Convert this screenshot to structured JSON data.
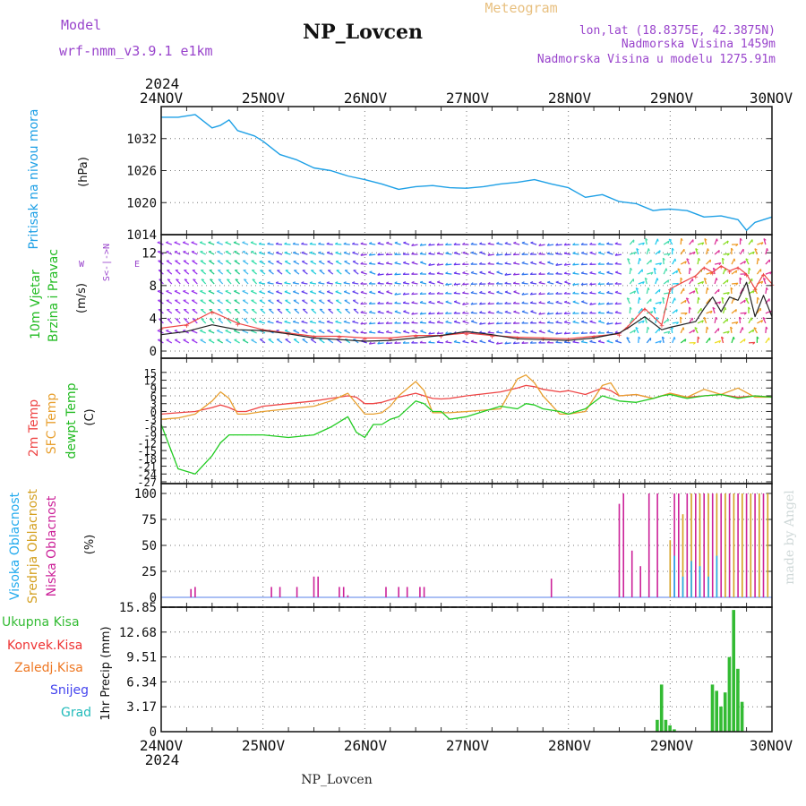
{
  "header": {
    "model_label": "Model",
    "model_name": "wrf-nmm_v3.9.1 e1km",
    "station": "NP_Lovcen",
    "chart_kind": "Meteogram",
    "lonlat": "lon,lat (18.8375E, 42.3875N)",
    "altitude": "Nadmorska Visina 1459m",
    "model_altitude": "Nadmorska Visina u modelu 1275.91m",
    "footer_station": "NP_Lovcen",
    "credit": "made by Angel"
  },
  "time_axis": {
    "year": "2024",
    "labels": [
      "24NOV",
      "25NOV",
      "26NOV",
      "27NOV",
      "28NOV",
      "29NOV",
      "30NOV"
    ]
  },
  "colors": {
    "pressure": "#1ea0e6",
    "temp2m": "#ee4444",
    "sfctemp": "#e8a030",
    "dewpt": "#22cc22",
    "cloud_high": "#22aaee",
    "cloud_mid": "#d4a020",
    "cloud_low": "#cc2299",
    "precip_total": "#33bb33",
    "precip_conv": "#ee3333",
    "precip_frz": "#ee7722",
    "precip_snow": "#4444ee",
    "precip_hail": "#22bbbb",
    "wind_speed": "#222222",
    "wind_gust": "#ee4444",
    "purple_text": "#9944cc"
  },
  "panels": {
    "pressure": {
      "label": "Pritisak na nivou mora",
      "unit": "(hPa)"
    },
    "wind": {
      "label1": "10m Vjetar",
      "label2": "Brzina i Pravac",
      "unit": "(m/s)",
      "compass_ns": "S<-|->N",
      "compass_w": "W",
      "compass_e": "E"
    },
    "temp": {
      "label_t2": "2m Temp",
      "label_sfc": "SFC Temp",
      "label_dew": "dewpt Temp",
      "unit": "(C)"
    },
    "cloud": {
      "label_high": "Visoka Oblacnost",
      "label_mid": "Srednja Oblacnost",
      "label_low": "Niska Oblacnost",
      "unit": "(%)"
    },
    "precip": {
      "label_total": "Ukupna Kisa",
      "label_conv": "Konvek.Kisa",
      "label_frz": "Zaledj.Kisa",
      "label_snow": "Snijeg",
      "label_hail": "Grad",
      "unit": "1hr Precip (mm)"
    }
  },
  "chart_data": [
    {
      "type": "line",
      "name": "pressure",
      "ylim": [
        1014,
        1038
      ],
      "yticks": [
        "1014",
        "1020",
        "1026",
        "1032"
      ],
      "x_hours": [
        0,
        4,
        8,
        12,
        14,
        16,
        18,
        20,
        22,
        24,
        28,
        32,
        36,
        40,
        44,
        48,
        52,
        56,
        60,
        64,
        68,
        72,
        76,
        80,
        84,
        88,
        92,
        96,
        100,
        104,
        108,
        112,
        116,
        118,
        120,
        124,
        128,
        132,
        136,
        138,
        140,
        142,
        144
      ],
      "values": [
        1036,
        1036,
        1036.5,
        1034,
        1034.5,
        1035.5,
        1033.5,
        1033,
        1032.5,
        1031.5,
        1029,
        1028,
        1026.5,
        1026,
        1025,
        1024.3,
        1023.5,
        1022.5,
        1023,
        1023.2,
        1022.8,
        1022.7,
        1023,
        1023.5,
        1023.8,
        1024.3,
        1023.5,
        1022.8,
        1021,
        1021.5,
        1020.2,
        1019.8,
        1018.5,
        1018.7,
        1018.8,
        1018.5,
        1017.3,
        1017.5,
        1016.8,
        1014.8,
        1016.3,
        1016.8,
        1017.3
      ]
    },
    {
      "type": "line",
      "name": "wind",
      "ylim": [
        0,
        14
      ],
      "yticks": [
        "0",
        "4",
        "8",
        "12"
      ],
      "x_hours": [
        0,
        6,
        12,
        18,
        24,
        30,
        36,
        42,
        48,
        54,
        60,
        66,
        72,
        78,
        84,
        90,
        96,
        102,
        108,
        110,
        114,
        118,
        120,
        126,
        128,
        130,
        132,
        134,
        136,
        138,
        140,
        142,
        144
      ],
      "series": [
        {
          "name": "speed",
          "values": [
            2,
            2.4,
            3.2,
            2.6,
            2.5,
            2.1,
            1.6,
            1.4,
            1.2,
            1.3,
            1.6,
            1.9,
            2.4,
            2,
            1.5,
            1.4,
            1.3,
            1.6,
            2.2,
            2.8,
            4.2,
            2.6,
            2.9,
            3.6,
            5.2,
            6.6,
            4.8,
            6.6,
            6.2,
            8.4,
            4.2,
            6.8,
            4.2
          ]
        },
        {
          "name": "gust",
          "values": [
            2.8,
            3.2,
            4.8,
            3.4,
            2.6,
            2.2,
            1.8,
            1.8,
            1.6,
            1.6,
            1.9,
            1.9,
            2.2,
            1.9,
            1.7,
            1.6,
            1.5,
            1.8,
            2.1,
            3,
            5.2,
            3.2,
            7.6,
            9.2,
            10.2,
            9.6,
            10.4,
            9.8,
            10.2,
            9.4,
            7.6,
            9.4,
            8.2
          ]
        }
      ]
    },
    {
      "type": "line",
      "name": "temperature",
      "ylim": [
        -27,
        17
      ],
      "yticks": [
        "-27",
        "-24",
        "-21",
        "-18",
        "-15",
        "-12",
        "-9",
        "-6",
        "-3",
        "0",
        "3",
        "6",
        "9",
        "12",
        "15"
      ],
      "x_hours": [
        0,
        4,
        8,
        12,
        14,
        16,
        18,
        20,
        24,
        30,
        36,
        40,
        44,
        46,
        48,
        50,
        52,
        54,
        56,
        60,
        62,
        64,
        66,
        68,
        72,
        80,
        84,
        86,
        88,
        90,
        94,
        96,
        100,
        104,
        106,
        108,
        112,
        116,
        118,
        120,
        124,
        128,
        132,
        136,
        140,
        144
      ],
      "series": [
        {
          "name": "t2m",
          "values": [
            -1,
            -0.5,
            0,
            1.5,
            2.5,
            1.5,
            0,
            0,
            2,
            3,
            4,
            5,
            6,
            5.5,
            3,
            3,
            3.5,
            4.5,
            5.5,
            7,
            6,
            5,
            4.8,
            5,
            6,
            7.5,
            9,
            10,
            9.5,
            8.5,
            7.5,
            8,
            6.5,
            9,
            8,
            6,
            6.5,
            5,
            6,
            7,
            5.5,
            6,
            6.5,
            5.5,
            6,
            5.5
          ]
        },
        {
          "name": "sfc",
          "values": [
            -3,
            -2.5,
            -1,
            4,
            7.5,
            5,
            -1,
            -1,
            0,
            1,
            2,
            4,
            7,
            3,
            -1,
            -1,
            -0.5,
            2,
            6,
            11.5,
            8,
            -0.5,
            -0.5,
            -0.5,
            0,
            1,
            12.5,
            14,
            11,
            6,
            -1,
            -1,
            0,
            10,
            11,
            6,
            6.5,
            5,
            6,
            7,
            5.5,
            8.5,
            6.5,
            9,
            5.5,
            5.5
          ]
        },
        {
          "name": "dewpt",
          "values": [
            -5,
            -22,
            -24,
            -17,
            -12,
            -9,
            -9,
            -9,
            -9,
            -10,
            -9,
            -6,
            -2,
            -8,
            -10,
            -5,
            -5,
            -3,
            -2,
            4,
            3,
            0,
            0,
            -3,
            -2,
            2,
            1,
            3,
            2.5,
            1,
            0,
            -1,
            1,
            6,
            5,
            4,
            3.5,
            5,
            6,
            6.5,
            5,
            6,
            6.5,
            5,
            6,
            5.5
          ]
        }
      ]
    },
    {
      "type": "bar",
      "name": "cloud_cover",
      "ylim": [
        0,
        100
      ],
      "yticks": [
        "0",
        "25",
        "50",
        "75",
        "100"
      ],
      "series": [
        {
          "name": "low",
          "x_hours": [
            7,
            8,
            26,
            28,
            32,
            36,
            37,
            42,
            43,
            44,
            53,
            56,
            58,
            61,
            62,
            92,
            108,
            109,
            111,
            113,
            115,
            117,
            121,
            122,
            124,
            126,
            128,
            130,
            132,
            134,
            136,
            138,
            140,
            142
          ],
          "values": [
            8,
            10,
            10,
            10,
            10,
            20,
            20,
            10,
            10,
            2,
            10,
            10,
            10,
            10,
            10,
            18,
            90,
            100,
            45,
            30,
            100,
            100,
            100,
            100,
            100,
            100,
            100,
            100,
            100,
            100,
            100,
            100,
            100,
            100
          ]
        },
        {
          "name": "mid",
          "x_hours": [
            120,
            123,
            125,
            127,
            129,
            131,
            133,
            135,
            137,
            139,
            141,
            143
          ],
          "values": [
            55,
            80,
            100,
            100,
            100,
            100,
            100,
            100,
            100,
            100,
            100,
            100
          ]
        },
        {
          "name": "high",
          "x_hours": [
            121,
            123,
            125,
            127,
            129,
            131
          ],
          "values": [
            40,
            20,
            35,
            30,
            20,
            40
          ]
        }
      ]
    },
    {
      "type": "bar",
      "name": "precipitation",
      "ylim": [
        0,
        15.85
      ],
      "yticks": [
        "0",
        "3.17",
        "6.34",
        "9.51",
        "12.68",
        "15.85"
      ],
      "series": [
        {
          "name": "total",
          "x_hours": [
            117,
            118,
            119,
            120,
            121,
            130,
            131,
            132,
            133,
            134,
            135,
            136,
            137
          ],
          "values": [
            1.5,
            6,
            1.5,
            0.8,
            0.3,
            6,
            5.2,
            3.2,
            5,
            9.5,
            15.5,
            8,
            3.8
          ]
        }
      ]
    }
  ]
}
